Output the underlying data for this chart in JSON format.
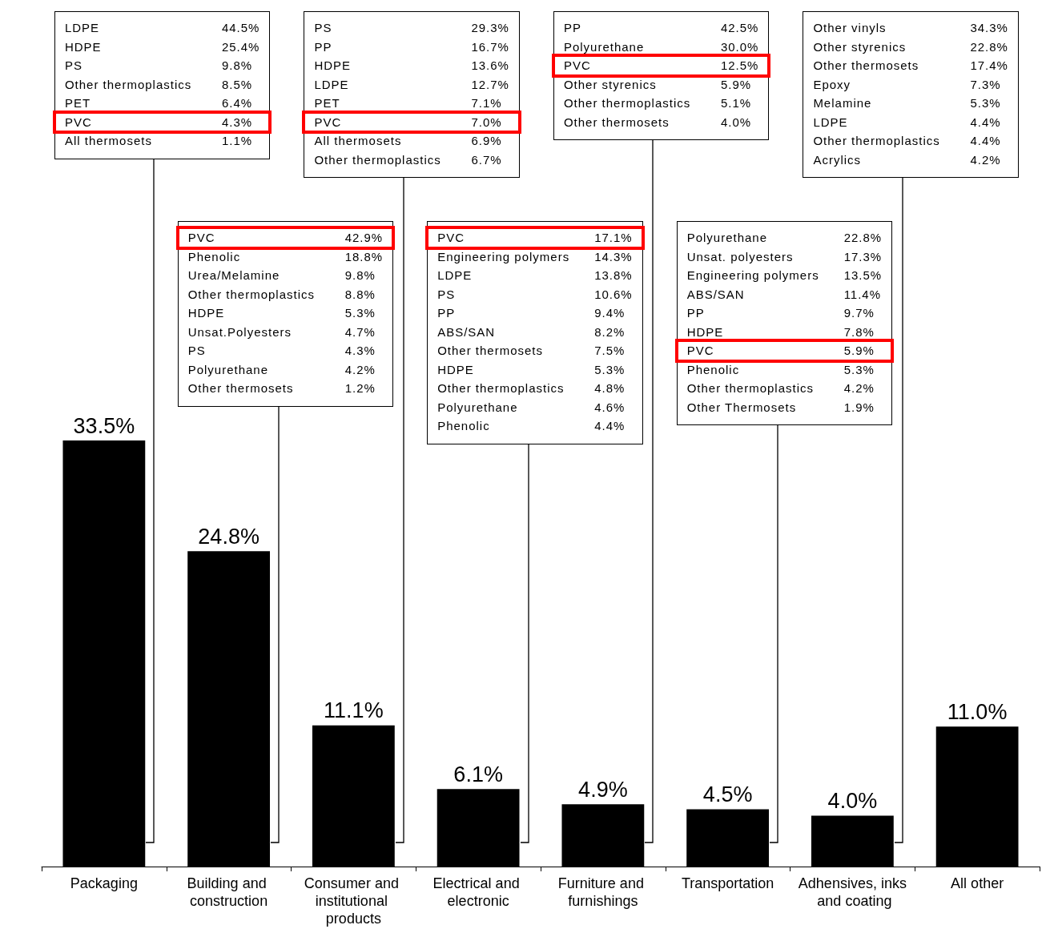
{
  "chart_data": {
    "type": "bar",
    "categories": [
      "Packaging",
      "Building and construction",
      "Consumer and institutional products",
      "Electrical and electronic",
      "Furniture and furnishings",
      "Transportation",
      "Adhensives, inks and coating",
      "All other"
    ],
    "values": [
      33.5,
      24.8,
      11.1,
      6.1,
      4.9,
      4.5,
      4.0,
      11.0
    ],
    "value_labels": [
      "33.5%",
      "24.8%",
      "11.1%",
      "6.1%",
      "4.9%",
      "4.5%",
      "4.0%",
      "11.0%"
    ],
    "color": "#000000",
    "annotations": [
      "LDPE 44.5%\nHDPE 25.4%\nPS 9.8%\nOther thermoplastics 8.5%\nPET 6.4%\nPVC 4.3%\nAll thermosets 1.1%",
      "PVC 42.9%\nPhenolic 18.8%\nUrea/Melamine 9.8%\nOther thermoplastics 8.8%\nHDPE 5.3%\nUnsat.Polyesters 4.7%\nPS 4.3%\nPolyurethane 4.2%\nOther thermosets 1.2%",
      "PS 29.3%\nPP 16.7%\nHDPE 13.6%\nLDPE 12.7%\nPET 7.1%\nPVC 7.0%\nAll thermosets 6.9%\nOther thermoplastics 6.7%",
      "PVC 17.1%\nEngineering polymers 14.3%\nLDPE 13.8%\nPS 10.6%\nPP 9.4%\nABS/SAN 8.2%\nOther thermosets 7.5%\nHDPE 5.3%\nOther thermoplastics 4.8%\nPolyurethane 4.6%\nPhenolic 4.4%",
      "PP 42.5%\nPolyurethane 30.0%\nPVC 12.5%\nOther styrenics 5.9%\nOther thermoplastics 5.1%\nOther thermosets 4.0%",
      "Polyurethane 22.8%\nUnsat. polyesters 17.3%\nEngineering polymers 13.5%\nABS/SAN 11.4%\nPP 9.7%\nHDPE 7.8%\nPVC 5.9%\nPhenolic 5.3%\nOther thermoplastics 4.2%\nOther Thermosets 1.9%",
      "Other vinyls 34.3%\nOther styrenics 22.8%\nOther thermosets 17.4%\nEpoxy 7.3%\nMelamine 5.3%\nLDPE 4.4%\nOther thermoplastics 4.4%\nAcrylics 4.2%"
    ]
  }
}
